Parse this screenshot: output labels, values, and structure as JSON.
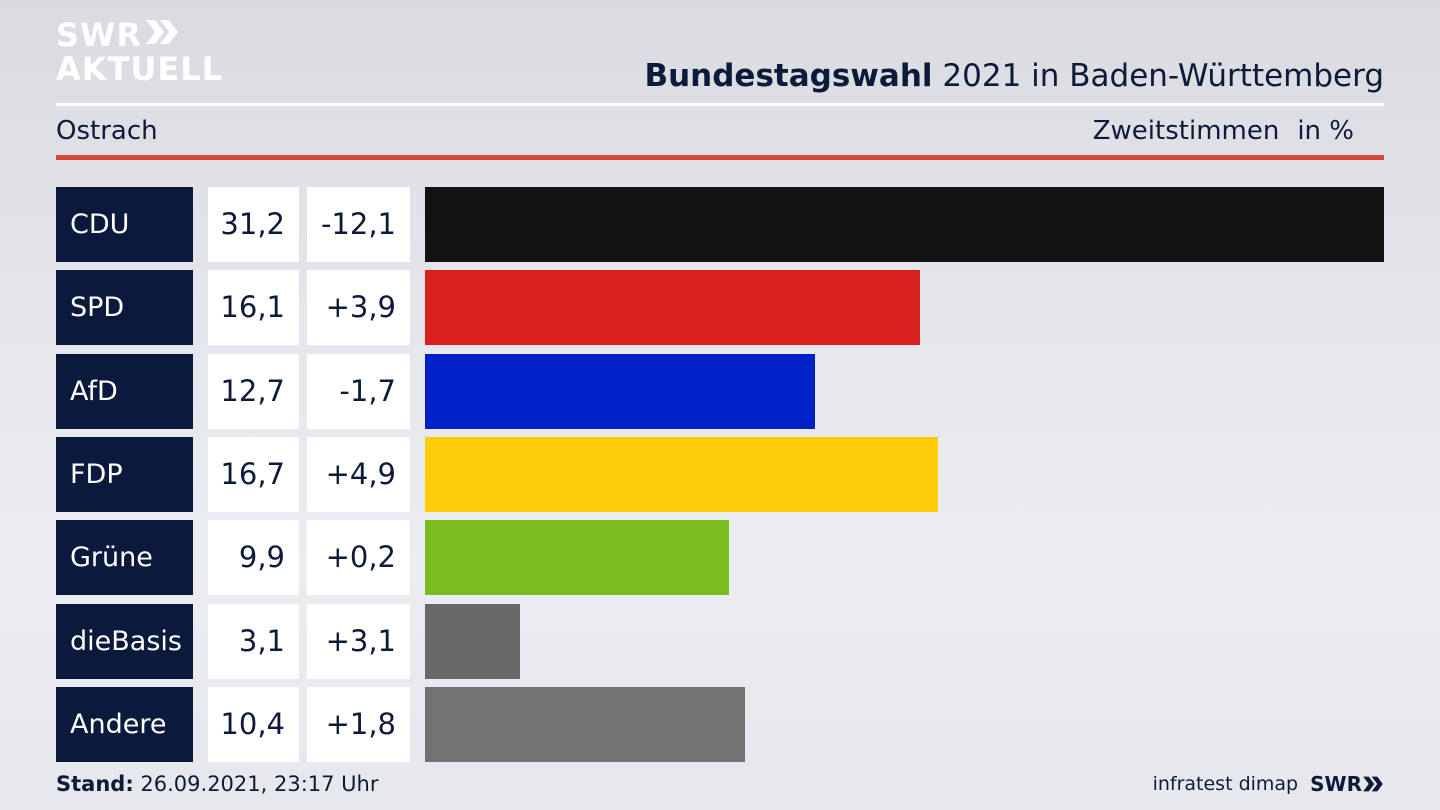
{
  "brand": {
    "logo_top": "SWR",
    "logo_bottom": "AKTUELL"
  },
  "header": {
    "title_bold": "Bundestagswahl",
    "title_rest": " 2021 in Baden-Württemberg",
    "location": "Ostrach",
    "measure": "Zweitstimmen",
    "unit": "in %"
  },
  "footer": {
    "stand_label": "Stand:",
    "stand_value": " 26.09.2021, 23:17 Uhr",
    "source": "infratest dimap",
    "brand": "SWR"
  },
  "chart_data": {
    "type": "bar",
    "orientation": "horizontal",
    "categories": [
      "CDU",
      "SPD",
      "AfD",
      "FDP",
      "Grüne",
      "dieBasis",
      "Andere"
    ],
    "values": [
      31.2,
      16.1,
      12.7,
      16.7,
      9.9,
      3.1,
      10.4
    ],
    "value_labels": [
      "31,2",
      "16,1",
      "12,7",
      "16,7",
      "9,9",
      "3,1",
      "10,4"
    ],
    "change_labels": [
      "-12,1",
      "+3,9",
      "-1,7",
      "+4,9",
      "+0,2",
      "+3,1",
      "+1,8"
    ],
    "changes": [
      -12.1,
      3.9,
      -1.7,
      4.9,
      0.2,
      3.1,
      1.8
    ],
    "colors": [
      "#121212",
      "#d8201e",
      "#0021c8",
      "#fdcc0a",
      "#79be1e",
      "#686868",
      "#727273"
    ],
    "xlim": [
      0,
      31.2
    ],
    "grid": false,
    "legend": "none"
  }
}
